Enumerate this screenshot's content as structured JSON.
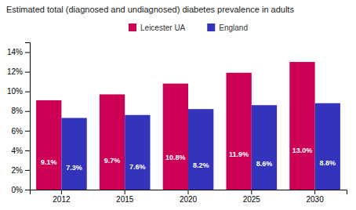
{
  "chart_data": {
    "type": "bar",
    "title": "Estimated total (diagnosed and undiagnosed) diabetes prevalence in adults",
    "categories": [
      "2012",
      "2015",
      "2020",
      "2025",
      "2030"
    ],
    "series": [
      {
        "name": "Leicester UA",
        "color": "#CC0055",
        "values": [
          9.1,
          9.7,
          10.8,
          11.9,
          13.0
        ],
        "value_labels": [
          "9.1%",
          "9.7%",
          "10.8%",
          "11.9%",
          "13.0%"
        ]
      },
      {
        "name": "England",
        "color": "#3333BB",
        "values": [
          7.3,
          7.6,
          8.2,
          8.6,
          8.8
        ],
        "value_labels": [
          "7.3%",
          "7.6%",
          "8.2%",
          "8.6%",
          "8.8%"
        ]
      }
    ],
    "ylim": [
      0,
      15
    ],
    "yticks": [
      {
        "value": 0,
        "label": "0%"
      },
      {
        "value": 2,
        "label": "2%"
      },
      {
        "value": 4,
        "label": "4%"
      },
      {
        "value": 6,
        "label": "6%"
      },
      {
        "value": 8,
        "label": "8%"
      },
      {
        "value": 10,
        "label": "10%"
      },
      {
        "value": 12,
        "label": "12%"
      },
      {
        "value": 14,
        "label": "14%"
      }
    ],
    "grid": false,
    "legend": "top",
    "data_labels": true
  }
}
